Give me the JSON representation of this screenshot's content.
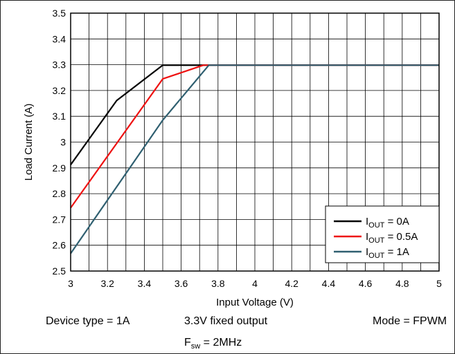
{
  "chart_data": {
    "type": "line",
    "title": "",
    "xlabel": "Input Voltage (V)",
    "ylabel": "Load Current (A)",
    "xlim": [
      3,
      5
    ],
    "ylim": [
      2.5,
      3.5
    ],
    "x_ticks": [
      "3",
      "3.2",
      "3.4",
      "3.6",
      "3.8",
      "4",
      "4.2",
      "4.4",
      "4.6",
      "4.8",
      "5"
    ],
    "y_ticks": [
      "2.5",
      "2.6",
      "2.7",
      "2.8",
      "2.9",
      "3",
      "3.1",
      "3.2",
      "3.3",
      "3.4",
      "3.5"
    ],
    "grid": true,
    "legend_position": "bottom-right",
    "series": [
      {
        "name": "IOUT = 0A",
        "label_main": "I",
        "label_sub": "OUT",
        "label_tail": " = 0A",
        "color": "#000000",
        "x": [
          3.0,
          3.25,
          3.5,
          3.75,
          5.0
        ],
        "y": [
          2.912,
          3.161,
          3.298,
          3.298,
          3.298
        ]
      },
      {
        "name": "IOUT = 0.5A",
        "label_main": "I",
        "label_sub": "OUT",
        "label_tail": " = 0.5A",
        "color": "#ee1111",
        "x": [
          3.0,
          3.5,
          3.72,
          5.0
        ],
        "y": [
          2.745,
          3.245,
          3.298,
          3.298
        ]
      },
      {
        "name": "IOUT = 1A",
        "label_main": "I",
        "label_sub": "OUT",
        "label_tail": " = 1A",
        "color": "#2f5f70",
        "x": [
          3.0,
          3.5,
          3.75,
          5.0
        ],
        "y": [
          2.568,
          3.085,
          3.298,
          3.298
        ]
      }
    ]
  },
  "notes": {
    "device_type": "Device type = 1A",
    "output": "3.3V fixed output",
    "mode": "Mode = FPWM",
    "fsw_main": "F",
    "fsw_sub": "sw",
    "fsw_tail": " = 2MHz"
  }
}
